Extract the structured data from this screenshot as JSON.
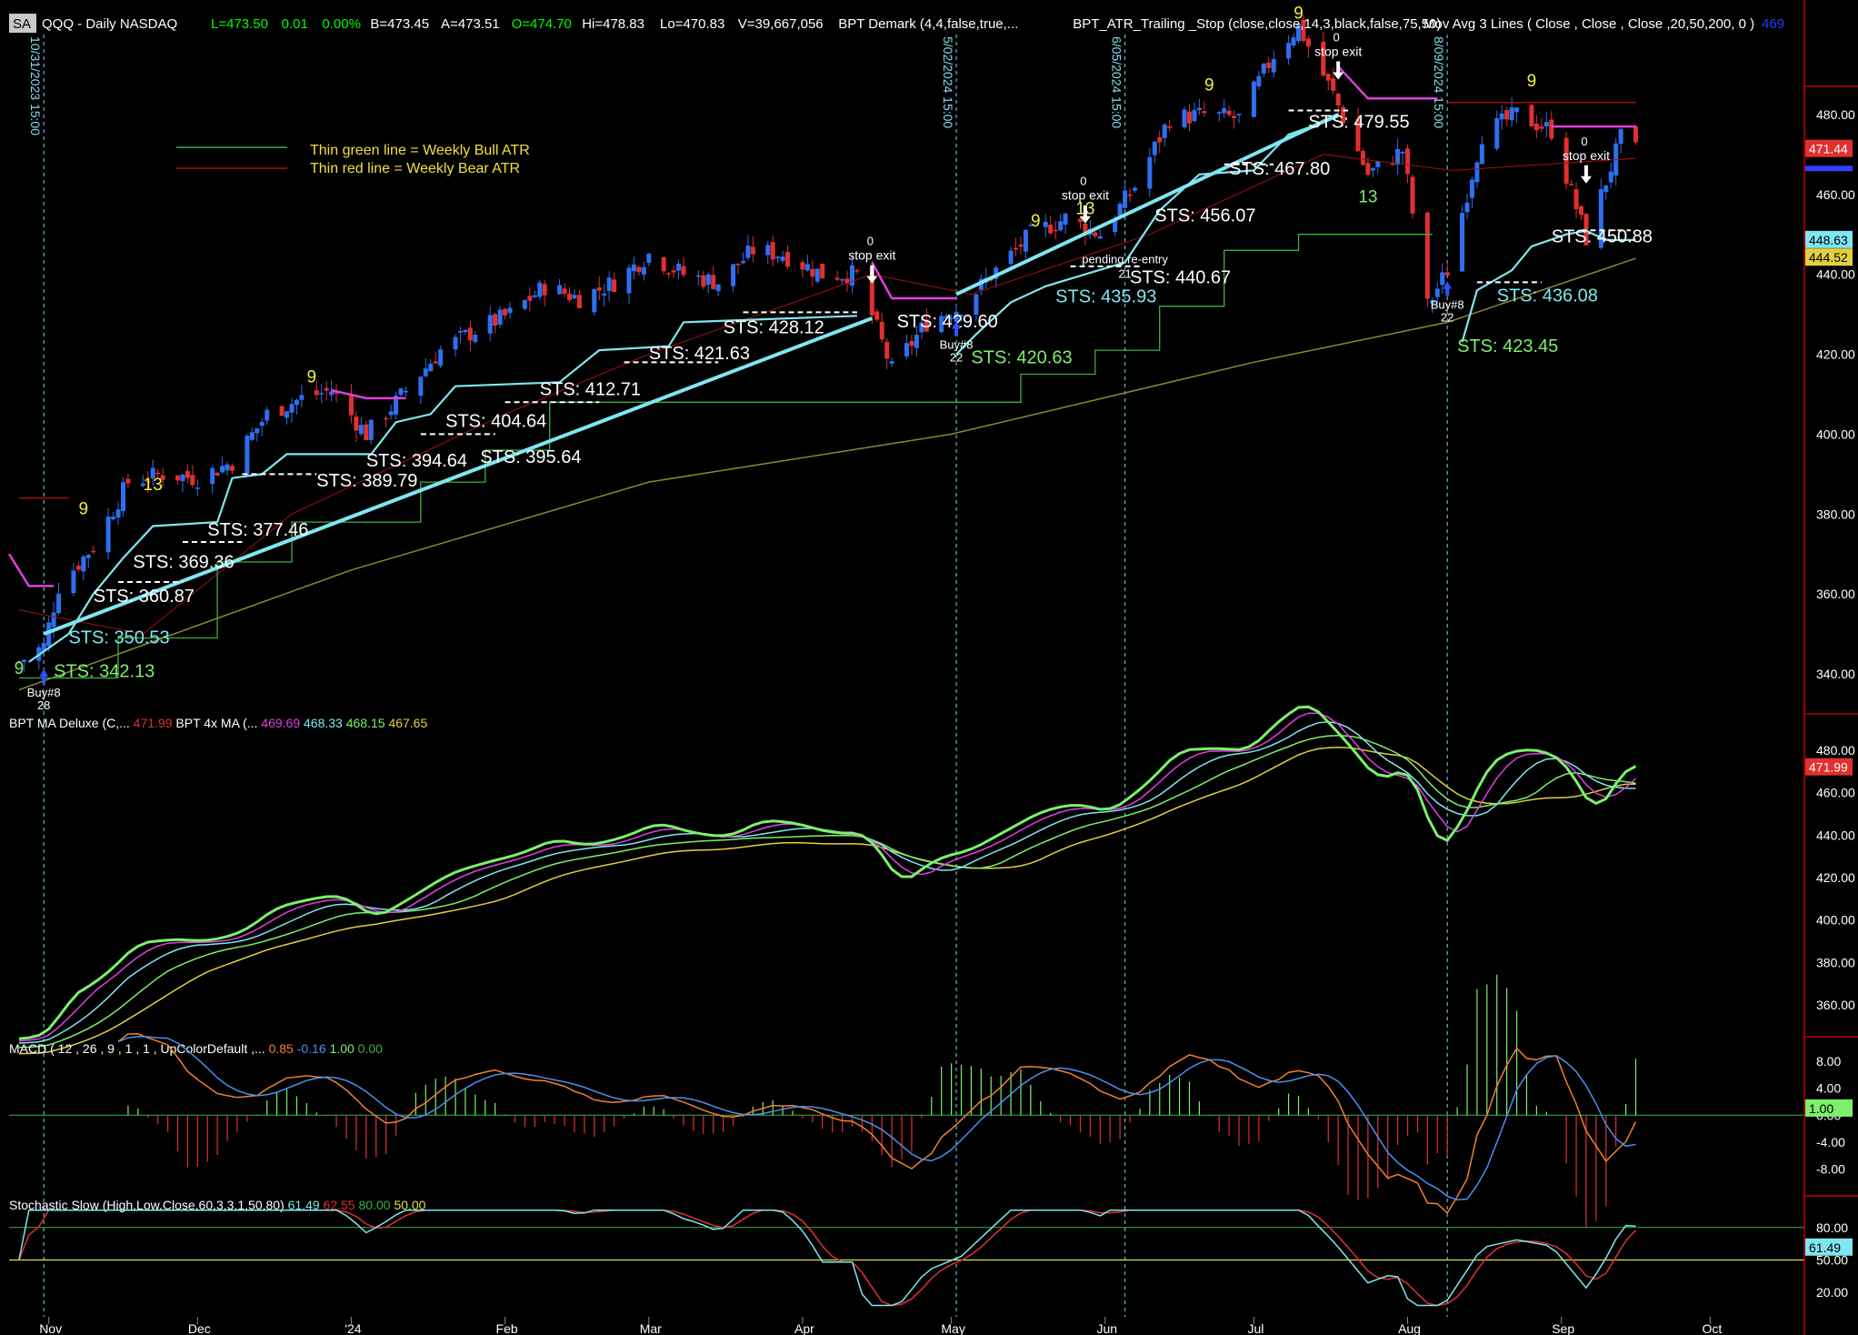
{
  "colors": {
    "bg": "#000000",
    "axis_line": "#c00000",
    "text": "#ffffff",
    "grid_text": "#ffffff",
    "up": "#2e6ff0",
    "down": "#e03030",
    "sts": "#7fe6f0",
    "sts_green": "#7cf06a",
    "magenta": "#e040e0",
    "green_atr": "#3cb040",
    "red_atr": "#b01010",
    "ma200": "#8a8a30",
    "demark9": "#f0f040",
    "demark13": "#f0f040",
    "dash": "#80e0f0"
  },
  "header": {
    "symbol_tag": "SA",
    "title": "QQQ - Daily  NASDAQ",
    "quote": [
      {
        "text": "L=473.50",
        "color": "#00ff00"
      },
      {
        "text": "0.01",
        "color": "#00ff00"
      },
      {
        "text": "0.00%",
        "color": "#00ff00"
      },
      {
        "text": "B=473.45",
        "color": "#ffffff"
      },
      {
        "text": "A=473.51",
        "color": "#ffffff"
      },
      {
        "text": "O=474.70",
        "color": "#00ff00"
      },
      {
        "text": "Hi=478.83",
        "color": "#ffffff"
      },
      {
        "text": "Lo=470.83",
        "color": "#ffffff"
      },
      {
        "text": "V=39,667,056",
        "color": "#ffffff"
      },
      {
        "text": "BPT Demark (4,4,false,true,...",
        "color": "#ffffff"
      },
      {
        "text": "BPT_ATR_Trailing _Stop (close,close,14,3,black,false,75,50)",
        "color": "#ffffff"
      }
    ],
    "right_study": "Mov Avg 3 Lines ( Close , Close , Close ,20,50,200, 0 )",
    "right_study_value": "469"
  },
  "legend_note": {
    "green_label": "Thin green line = Weekly Bull ATR",
    "red_label": "Thin red line = Weekly Bear ATR"
  },
  "chart_data": [
    {
      "type": "candlestick",
      "panel": "price",
      "y_ticks": [
        480,
        460,
        440,
        420,
        400,
        380,
        360,
        340
      ],
      "ylim": [
        330,
        500
      ],
      "last_price_labels": [
        {
          "text": "471.44",
          "color": "#e03030"
        },
        {
          "text": "448.63",
          "color": "#7fe6f0"
        },
        {
          "text": "444.52",
          "color": "#e0d040"
        }
      ],
      "x_months": [
        "Nov",
        "Dec",
        "'24",
        "Feb",
        "Mar",
        "Apr",
        "May",
        "Jun",
        "Jul",
        "Aug",
        "Sep",
        "Oct"
      ],
      "vertical_markers": [
        "10/31/2023 15:00",
        "5/02/2024 15:00",
        "6/05/2024 15:00",
        "8/09/2024 15:00"
      ],
      "close_path": [
        [
          "2023-10-26",
          343
        ],
        [
          "2023-10-31",
          347
        ],
        [
          "2023-11-03",
          362
        ],
        [
          "2023-11-10",
          372
        ],
        [
          "2023-11-17",
          388
        ],
        [
          "2023-11-24",
          390
        ],
        [
          "2023-12-01",
          389
        ],
        [
          "2023-12-08",
          393
        ],
        [
          "2023-12-15",
          405
        ],
        [
          "2023-12-22",
          409
        ],
        [
          "2023-12-28",
          411
        ],
        [
          "2024-01-04",
          400
        ],
        [
          "2024-01-10",
          408
        ],
        [
          "2024-01-19",
          421
        ],
        [
          "2024-01-26",
          426
        ],
        [
          "2024-02-02",
          430
        ],
        [
          "2024-02-09",
          437
        ],
        [
          "2024-02-16",
          434
        ],
        [
          "2024-02-23",
          438
        ],
        [
          "2024-03-01",
          445
        ],
        [
          "2024-03-08",
          440
        ],
        [
          "2024-03-15",
          438
        ],
        [
          "2024-03-22",
          446
        ],
        [
          "2024-03-28",
          445
        ],
        [
          "2024-04-05",
          440
        ],
        [
          "2024-04-12",
          440
        ],
        [
          "2024-04-19",
          416
        ],
        [
          "2024-04-26",
          428
        ],
        [
          "2024-05-03",
          432
        ],
        [
          "2024-05-10",
          441
        ],
        [
          "2024-05-17",
          450
        ],
        [
          "2024-05-24",
          454
        ],
        [
          "2024-05-31",
          450
        ],
        [
          "2024-06-07",
          462
        ],
        [
          "2024-06-14",
          479
        ],
        [
          "2024-06-21",
          480
        ],
        [
          "2024-06-28",
          479
        ],
        [
          "2024-07-05",
          495
        ],
        [
          "2024-07-10",
          502
        ],
        [
          "2024-07-17",
          485
        ],
        [
          "2024-07-24",
          465
        ],
        [
          "2024-07-31",
          471
        ],
        [
          "2024-08-05",
          432
        ],
        [
          "2024-08-09",
          441
        ],
        [
          "2024-08-16",
          475
        ],
        [
          "2024-08-23",
          480
        ],
        [
          "2024-08-30",
          476
        ],
        [
          "2024-09-06",
          449
        ],
        [
          "2024-09-13",
          474
        ],
        [
          "2024-09-16",
          471
        ]
      ],
      "sts_labels": [
        {
          "text": "STS: 342.13",
          "color": "#7cf06a"
        },
        {
          "text": "STS: 350.53",
          "color": "#7fe6f0"
        },
        {
          "text": "STS: 360.87",
          "color": "#ffffff"
        },
        {
          "text": "STS: 369.36",
          "color": "#ffffff"
        },
        {
          "text": "STS: 377.46",
          "color": "#ffffff"
        },
        {
          "text": "STS: 389.79",
          "color": "#ffffff"
        },
        {
          "text": "STS: 394.64",
          "color": "#ffffff"
        },
        {
          "text": "STS: 395.64",
          "color": "#ffffff"
        },
        {
          "text": "STS: 404.64",
          "color": "#ffffff"
        },
        {
          "text": "STS: 412.71",
          "color": "#ffffff"
        },
        {
          "text": "STS: 421.63",
          "color": "#ffffff"
        },
        {
          "text": "STS: 428.12",
          "color": "#ffffff"
        },
        {
          "text": "STS: 429.60",
          "color": "#ffffff"
        },
        {
          "text": "STS: 420.63",
          "color": "#7cf06a"
        },
        {
          "text": "STS: 435.93",
          "color": "#7fe6f0"
        },
        {
          "text": "STS: 440.67",
          "color": "#ffffff"
        },
        {
          "text": "STS: 456.07",
          "color": "#ffffff"
        },
        {
          "text": "STS: 467.80",
          "color": "#ffffff"
        },
        {
          "text": "STS: 479.55",
          "color": "#ffffff"
        },
        {
          "text": "STS: 423.45",
          "color": "#7cf06a"
        },
        {
          "text": "STS: 436.08",
          "color": "#7fe6f0"
        },
        {
          "text": "STS: 450.88",
          "color": "#ffffff"
        }
      ],
      "demark_counts": [
        {
          "text": "9",
          "color": "#7cf06a"
        },
        {
          "text": "9",
          "color": "#f0f040"
        },
        {
          "text": "13",
          "color": "#f0f040"
        },
        {
          "text": "9",
          "color": "#f0f040"
        },
        {
          "text": "9",
          "color": "#f0f040"
        },
        {
          "text": "13",
          "color": "#f0f040"
        },
        {
          "text": "9",
          "color": "#f0f040"
        },
        {
          "text": "9",
          "color": "#f0f040"
        },
        {
          "text": "13",
          "color": "#7cf06a"
        },
        {
          "text": "9",
          "color": "#f0f040"
        }
      ],
      "signals": [
        {
          "label": "Buy#8",
          "count": "28"
        },
        {
          "label": "stop exit",
          "count": "0"
        },
        {
          "label": "Buy#8",
          "count": "22"
        },
        {
          "label": "stop exit",
          "count": "0"
        },
        {
          "label": "pending re-entry",
          "count": "21"
        },
        {
          "label": "stop exit",
          "count": "0"
        },
        {
          "label": "Buy#8",
          "count": "22"
        },
        {
          "label": "stop exit",
          "count": "0"
        }
      ]
    },
    {
      "type": "line",
      "panel": "bpt_ma",
      "title": "BPT MA Deluxe (C,...",
      "title_value": "471.99",
      "title2": "BPT 4x MA (...",
      "series_values": [
        {
          "value": "469.69",
          "color": "#e040e0"
        },
        {
          "value": "468.33",
          "color": "#7fe6f0"
        },
        {
          "value": "468.15",
          "color": "#7cf06a"
        },
        {
          "value": "467.65",
          "color": "#e0d040"
        }
      ],
      "y_ticks": [
        480,
        460,
        440,
        420,
        400,
        380,
        360
      ],
      "ylim": [
        345,
        495
      ],
      "last_label": "471.99"
    },
    {
      "type": "line",
      "panel": "macd",
      "title": "MACD ( 12 , 26 , 9 , 1 , 1 , UpColorDefault ,...",
      "values": [
        {
          "value": "0.85",
          "color": "#f08030"
        },
        {
          "value": "-0.16",
          "color": "#4a90f0"
        },
        {
          "value": "1.00",
          "color": "#7cf06a"
        },
        {
          "value": "0.00",
          "color": "#3cb040"
        }
      ],
      "y_ticks": [
        "8.00",
        "4.00",
        "0.00",
        "-4.00",
        "-8.00"
      ],
      "ylim": [
        -12,
        11
      ],
      "last_label": "1.00"
    },
    {
      "type": "line",
      "panel": "stochastic",
      "title": "Stochastic Slow (High,Low,Close,60,3,3,1,50,80)",
      "values": [
        {
          "value": "61.49",
          "color": "#7fe6f0"
        },
        {
          "value": "62.55",
          "color": "#e03030"
        },
        {
          "value": "80.00",
          "color": "#3cb040"
        },
        {
          "value": "50.00",
          "color": "#e0e040"
        }
      ],
      "y_ticks": [
        "80.00",
        "50.00",
        "20.00"
      ],
      "ylim": [
        0,
        105
      ],
      "last_label": "61.49"
    }
  ]
}
